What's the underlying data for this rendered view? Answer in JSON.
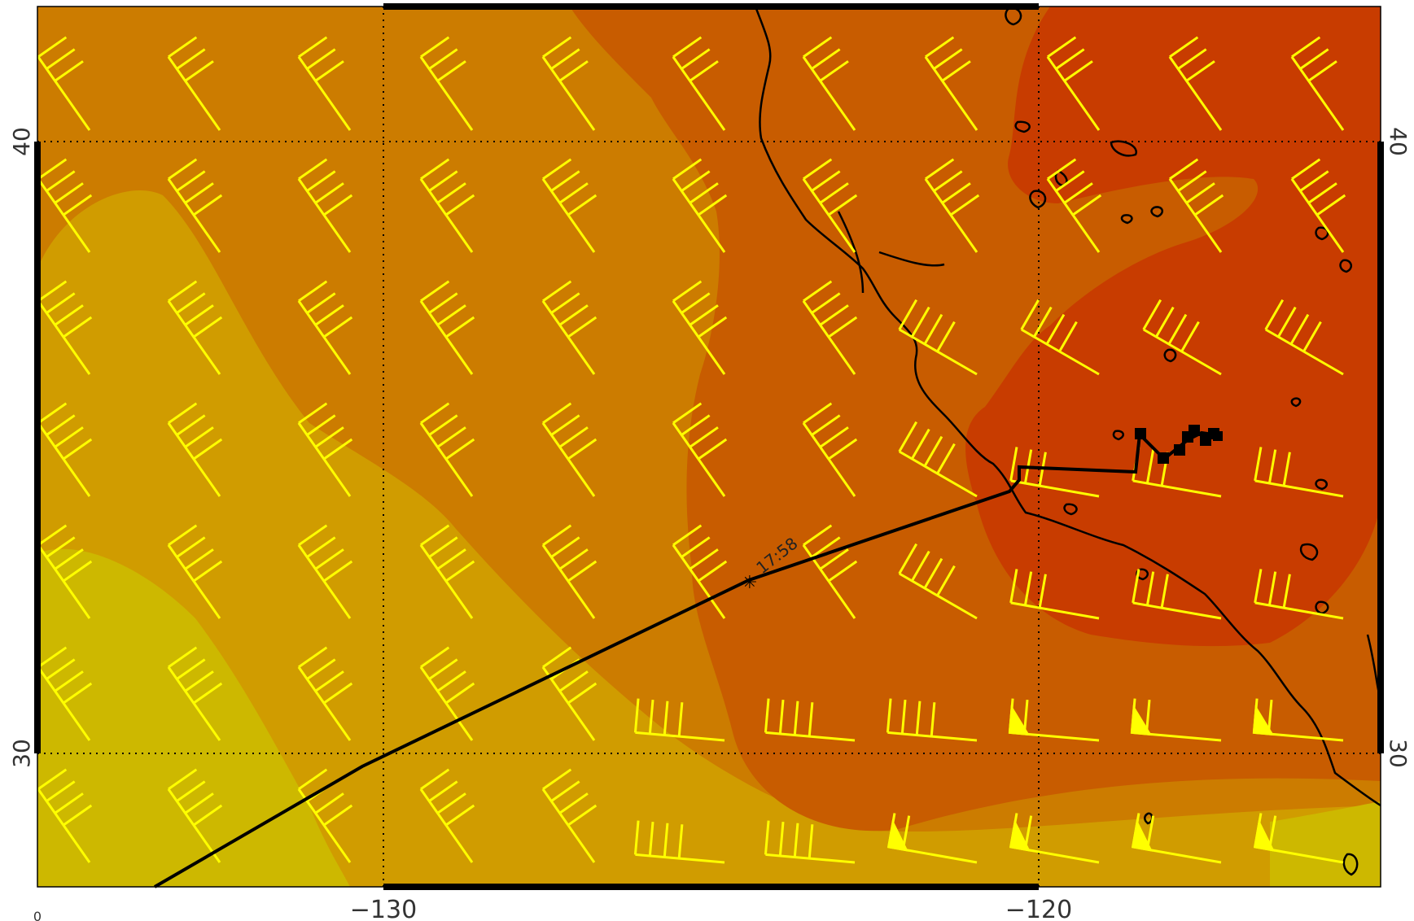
{
  "map": {
    "x_axis_labels": [
      "−130",
      "−120"
    ],
    "y_axis_labels_left": [
      "40",
      "30"
    ],
    "y_axis_labels_right": [
      "40",
      "30"
    ],
    "corner_label": "0",
    "track_time_label": "17:58",
    "colors": {
      "contour_lightest": "#cdb800",
      "contour_2": "#d09c00",
      "contour_3": "#cc7c00",
      "contour_4": "#c85c00",
      "contour_darkest": "#c83c00",
      "wind_barbs": "#ffff00",
      "coastline": "#000000",
      "flight_track": "#000000",
      "gridlines": "#000000"
    }
  }
}
